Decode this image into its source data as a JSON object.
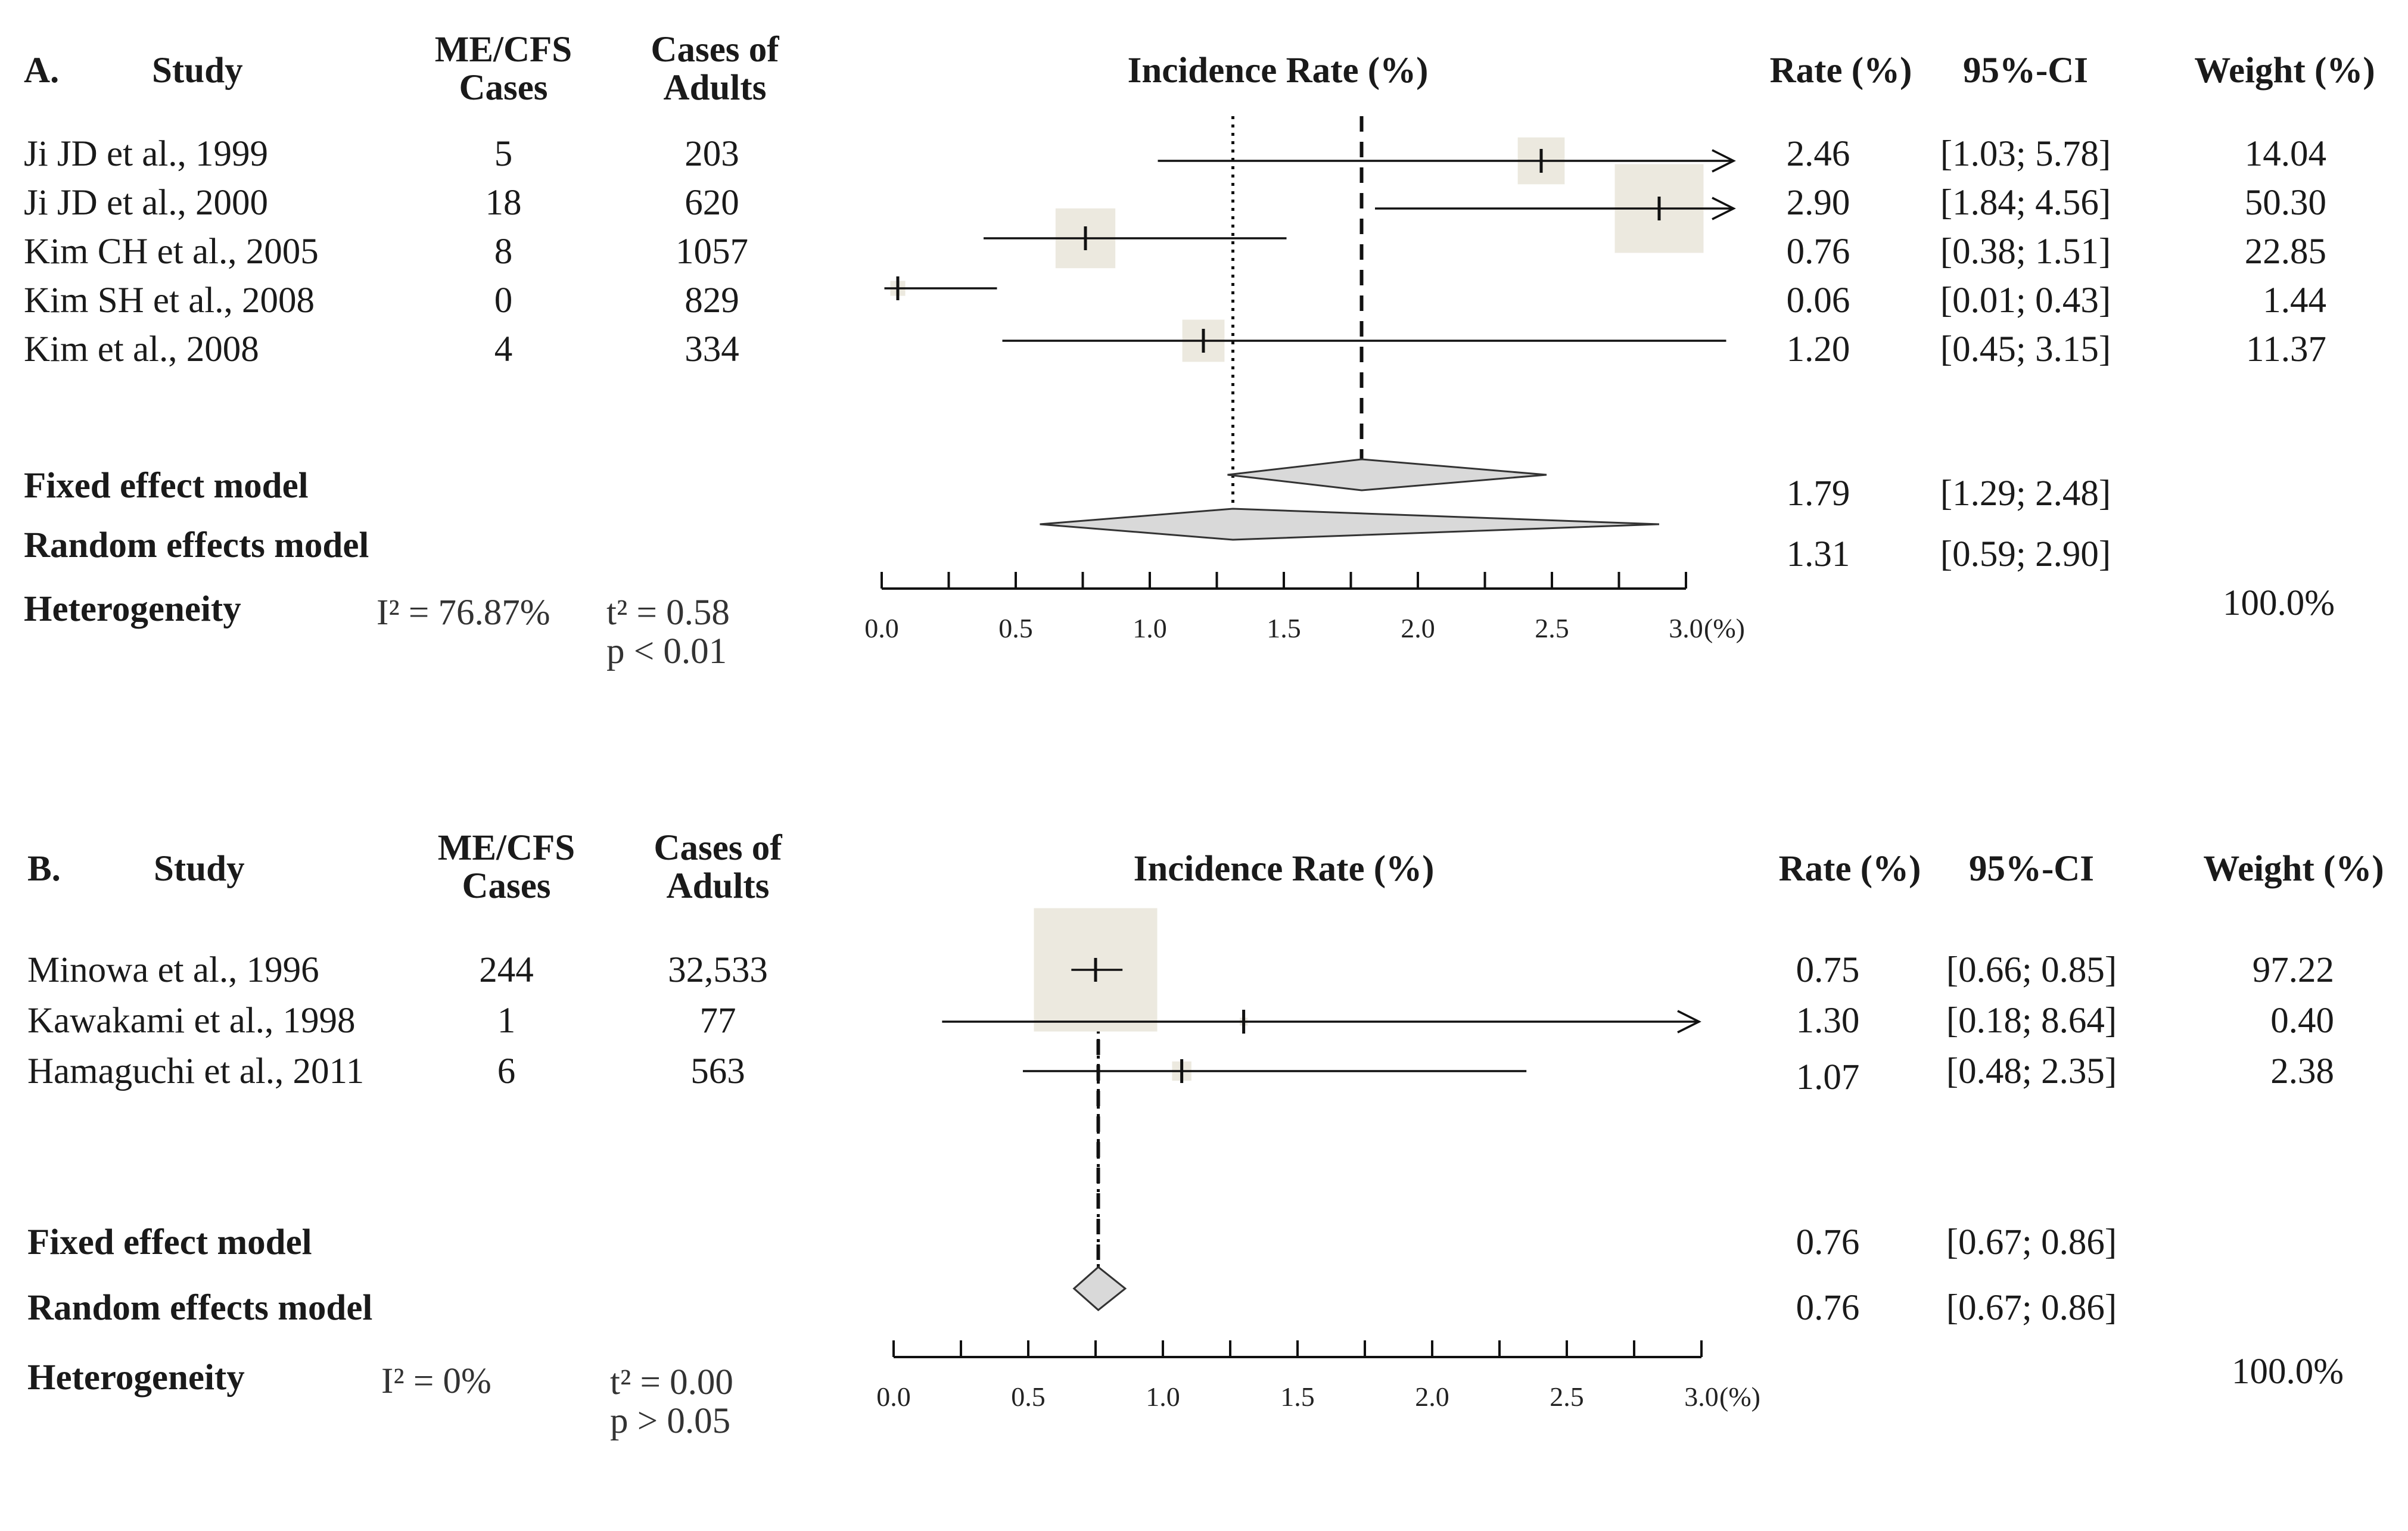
{
  "chart_data": [
    {
      "type": "forest",
      "panel_label": "A.",
      "headers": {
        "study": "Study",
        "cases": "ME/CFS\nCases",
        "adults": "Cases of\nAdults",
        "plot_title": "Incidence Rate (%)",
        "rate": "Rate (%)",
        "ci": "95%-CI",
        "weight": "Weight (%)"
      },
      "studies": [
        {
          "name": "Ji JD et al., 1999",
          "cases": "5",
          "adults": "203",
          "rate": 2.46,
          "lower": 1.03,
          "upper": 5.78,
          "rate_text": "2.46",
          "ci_text": "[1.03; 5.78]",
          "weight": 14.04,
          "weight_text": "14.04"
        },
        {
          "name": "Ji JD et al., 2000",
          "cases": "18",
          "adults": "620",
          "rate": 2.9,
          "lower": 1.84,
          "upper": 4.56,
          "rate_text": "2.90",
          "ci_text": "[1.84; 4.56]",
          "weight": 50.3,
          "weight_text": "50.30"
        },
        {
          "name": "Kim CH et al., 2005",
          "cases": "8",
          "adults": "1057",
          "rate": 0.76,
          "lower": 0.38,
          "upper": 1.51,
          "rate_text": "0.76",
          "ci_text": "[0.38; 1.51]",
          "weight": 22.85,
          "weight_text": "22.85"
        },
        {
          "name": "Kim SH et al., 2008",
          "cases": "0",
          "adults": "829",
          "rate": 0.06,
          "lower": 0.01,
          "upper": 0.43,
          "rate_text": "0.06",
          "ci_text": "[0.01; 0.43]",
          "weight": 1.44,
          "weight_text": "1.44"
        },
        {
          "name": "Kim et al., 2008",
          "cases": "4",
          "adults": "334",
          "rate": 1.2,
          "lower": 0.45,
          "upper": 3.15,
          "rate_text": "1.20",
          "ci_text": "[0.45; 3.15]",
          "weight": 11.37,
          "weight_text": "11.37"
        }
      ],
      "fixed": {
        "label": "Fixed effect model",
        "rate": 1.79,
        "lower": 1.29,
        "upper": 2.48,
        "rate_text": "1.79",
        "ci_text": "[1.29; 2.48]"
      },
      "random": {
        "label": "Random effects model",
        "rate": 1.31,
        "lower": 0.59,
        "upper": 2.9,
        "rate_text": "1.31",
        "ci_text": "[0.59; 2.90]"
      },
      "heterogeneity": {
        "label": "Heterogeneity",
        "i2": "I² = 76.87%",
        "tau2": "t² = 0.58",
        "p": "p < 0.01"
      },
      "total_weight": "100.0%",
      "axis": {
        "min": 0,
        "max": 3,
        "ticks": [
          0,
          0.5,
          1.0,
          1.5,
          2.0,
          2.5,
          3.0
        ],
        "tick_labels": [
          "0.0",
          "0.5",
          "1.0",
          "1.5",
          "2.0",
          "2.5",
          "3.0"
        ],
        "unit": "(%)"
      }
    },
    {
      "type": "forest",
      "panel_label": "B.",
      "headers": {
        "study": "Study",
        "cases": "ME/CFS\nCases",
        "adults": "Cases of\nAdults",
        "plot_title": "Incidence Rate (%)",
        "rate": "Rate (%)",
        "ci": "95%-CI",
        "weight": "Weight (%)"
      },
      "studies": [
        {
          "name": "Minowa et al., 1996",
          "cases": "244",
          "adults": "32,533",
          "rate": 0.75,
          "lower": 0.66,
          "upper": 0.85,
          "rate_text": "0.75",
          "ci_text": "[0.66; 0.85]",
          "weight": 97.22,
          "weight_text": "97.22"
        },
        {
          "name": "Kawakami et al., 1998",
          "cases": "1",
          "adults": "77",
          "rate": 1.3,
          "lower": 0.18,
          "upper": 8.64,
          "rate_text": "1.30",
          "ci_text": "[0.18; 8.64]",
          "weight": 0.4,
          "weight_text": "0.40"
        },
        {
          "name": "Hamaguchi et al., 2011",
          "cases": "6",
          "adults": "563",
          "rate": 1.07,
          "lower": 0.48,
          "upper": 2.35,
          "rate_text": "1.07",
          "ci_text": "[0.48; 2.35]",
          "weight": 2.38,
          "weight_text": "2.38"
        }
      ],
      "fixed": {
        "label": "Fixed effect model",
        "rate": 0.76,
        "lower": 0.67,
        "upper": 0.86,
        "rate_text": "0.76",
        "ci_text": "[0.67; 0.86]"
      },
      "random": {
        "label": "Random effects model",
        "rate": 0.76,
        "lower": 0.67,
        "upper": 0.86,
        "rate_text": "0.76",
        "ci_text": "[0.67; 0.86]"
      },
      "heterogeneity": {
        "label": "Heterogeneity",
        "i2": "I² = 0%",
        "tau2": "t² = 0.00",
        "p": "p > 0.05"
      },
      "total_weight": "100.0%",
      "axis": {
        "min": 0,
        "max": 3,
        "ticks": [
          0,
          0.5,
          1.0,
          1.5,
          2.0,
          2.5,
          3.0
        ],
        "tick_labels": [
          "0.0",
          "0.5",
          "1.0",
          "1.5",
          "2.0",
          "2.5",
          "3.0"
        ],
        "unit": "(%)"
      }
    }
  ],
  "colors": {
    "square_fill": "#ece9df",
    "diamond_fill": "#d9d9d9",
    "line": "#111111"
  }
}
